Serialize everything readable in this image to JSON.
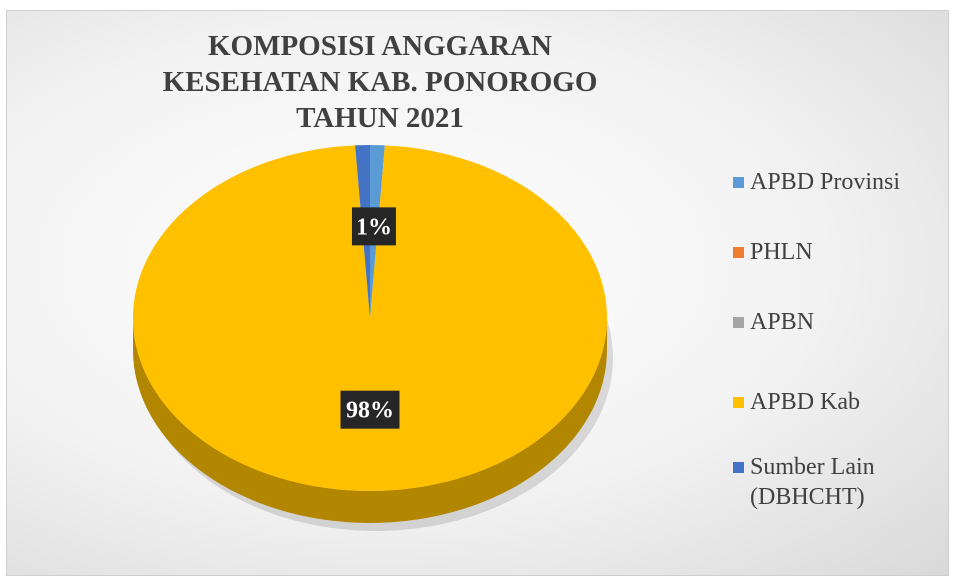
{
  "chart_data": {
    "type": "pie",
    "title": "KOMPOSISI ANGGARAN KESEHATAN KAB. PONOROGO TAHUN 2021",
    "categories": [
      "APBD Provinsi",
      "PHLN",
      "APBN",
      "APBD Kab",
      "Sumber Lain (DBHCHT)"
    ],
    "values": [
      1,
      0,
      0,
      98,
      1
    ],
    "value_labels": [
      "1%",
      null,
      null,
      "98%",
      null
    ],
    "colors": [
      "#5b9bd5",
      "#ed7d31",
      "#a5a5a5",
      "#ffc000",
      "#4472c4"
    ],
    "legend": "right"
  }
}
